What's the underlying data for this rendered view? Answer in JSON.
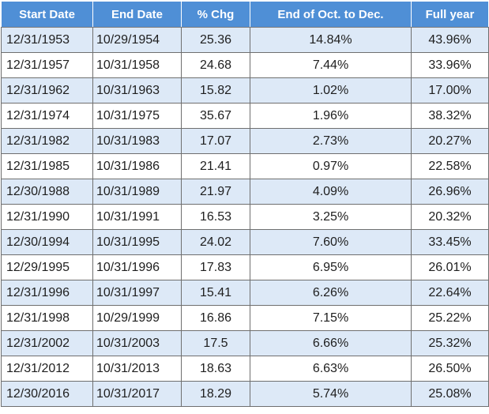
{
  "headers": {
    "start_date": "Start Date",
    "end_date": "End Date",
    "pct_chg": "% Chg",
    "oct_to_dec": "End of Oct. to Dec.",
    "full_year": "Full year"
  },
  "rows": [
    {
      "start": "12/31/1953",
      "end": "10/29/1954",
      "chg": "25.36",
      "oct": "14.84%",
      "full": "43.96%"
    },
    {
      "start": "12/31/1957",
      "end": "10/31/1958",
      "chg": "24.68",
      "oct": "7.44%",
      "full": "33.96%"
    },
    {
      "start": "12/31/1962",
      "end": "10/31/1963",
      "chg": "15.82",
      "oct": "1.02%",
      "full": "17.00%"
    },
    {
      "start": "12/31/1974",
      "end": "10/31/1975",
      "chg": "35.67",
      "oct": "1.96%",
      "full": "38.32%"
    },
    {
      "start": "12/31/1982",
      "end": "10/31/1983",
      "chg": "17.07",
      "oct": "2.73%",
      "full": "20.27%"
    },
    {
      "start": "12/31/1985",
      "end": "10/31/1986",
      "chg": "21.41",
      "oct": "0.97%",
      "full": "22.58%"
    },
    {
      "start": "12/30/1988",
      "end": "10/31/1989",
      "chg": "21.97",
      "oct": "4.09%",
      "full": "26.96%"
    },
    {
      "start": "12/31/1990",
      "end": "10/31/1991",
      "chg": "16.53",
      "oct": "3.25%",
      "full": "20.32%"
    },
    {
      "start": "12/30/1994",
      "end": "10/31/1995",
      "chg": "24.02",
      "oct": "7.60%",
      "full": "33.45%"
    },
    {
      "start": "12/29/1995",
      "end": "10/31/1996",
      "chg": "17.83",
      "oct": "6.95%",
      "full": "26.01%"
    },
    {
      "start": "12/31/1996",
      "end": "10/31/1997",
      "chg": "15.41",
      "oct": "6.26%",
      "full": "22.64%"
    },
    {
      "start": "12/31/1998",
      "end": "10/29/1999",
      "chg": "16.86",
      "oct": "7.15%",
      "full": "25.22%"
    },
    {
      "start": "12/31/2002",
      "end": "10/31/2003",
      "chg": "17.5",
      "oct": "6.66%",
      "full": "25.32%"
    },
    {
      "start": "12/31/2012",
      "end": "10/31/2013",
      "chg": "18.63",
      "oct": "6.63%",
      "full": "26.50%"
    },
    {
      "start": "12/30/2016",
      "end": "10/31/2017",
      "chg": "18.29",
      "oct": "5.74%",
      "full": "25.08%"
    }
  ],
  "colors": {
    "header_bg": "#4f8fd6",
    "header_text": "#ffffff",
    "shade_row_bg": "#dde9f7",
    "plain_row_bg": "#ffffff"
  }
}
